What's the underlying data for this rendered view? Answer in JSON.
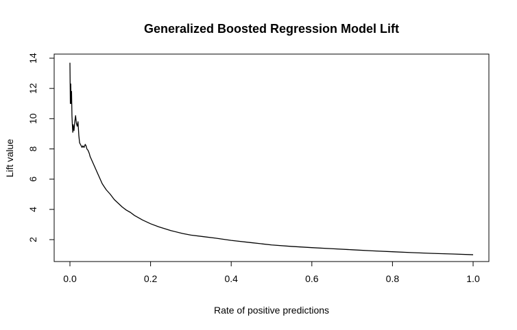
{
  "chart_data": {
    "type": "line",
    "title": "Generalized Boosted Regression Model Lift",
    "xlabel": "Rate of positive predictions",
    "ylabel": "Lift value",
    "xlim": [
      0.0,
      1.0
    ],
    "ylim": [
      1.0,
      14.0
    ],
    "x_ticks": [
      0.0,
      0.2,
      0.4,
      0.6,
      0.8,
      1.0
    ],
    "x_tick_labels": [
      "0.0",
      "0.2",
      "0.4",
      "0.6",
      "0.8",
      "1.0"
    ],
    "y_ticks": [
      2,
      4,
      6,
      8,
      10,
      12,
      14
    ],
    "y_tick_labels": [
      "2",
      "4",
      "6",
      "8",
      "10",
      "12",
      "14"
    ],
    "grid": false,
    "series": [
      {
        "color": "#000000",
        "x": [
          0.0,
          0.001,
          0.002,
          0.003,
          0.004,
          0.005,
          0.006,
          0.007,
          0.008,
          0.01,
          0.012,
          0.014,
          0.016,
          0.018,
          0.02,
          0.022,
          0.024,
          0.026,
          0.028,
          0.03,
          0.032,
          0.035,
          0.038,
          0.04,
          0.042,
          0.045,
          0.048,
          0.05,
          0.055,
          0.06,
          0.065,
          0.07,
          0.075,
          0.08,
          0.085,
          0.09,
          0.1,
          0.11,
          0.12,
          0.13,
          0.14,
          0.15,
          0.16,
          0.18,
          0.2,
          0.22,
          0.25,
          0.28,
          0.3,
          0.33,
          0.36,
          0.4,
          0.45,
          0.5,
          0.55,
          0.6,
          0.65,
          0.7,
          0.75,
          0.8,
          0.85,
          0.9,
          0.95,
          1.0
        ],
        "y": [
          13.7,
          11.0,
          12.3,
          11.0,
          11.8,
          10.2,
          9.6,
          9.1,
          9.6,
          9.2,
          9.8,
          10.2,
          9.7,
          9.5,
          9.8,
          8.9,
          8.4,
          8.3,
          8.2,
          8.1,
          8.2,
          8.1,
          8.3,
          8.2,
          8.0,
          7.9,
          7.7,
          7.5,
          7.2,
          6.9,
          6.6,
          6.3,
          6.0,
          5.7,
          5.5,
          5.3,
          5.0,
          4.65,
          4.4,
          4.15,
          3.95,
          3.8,
          3.6,
          3.3,
          3.05,
          2.85,
          2.6,
          2.4,
          2.3,
          2.2,
          2.1,
          1.95,
          1.8,
          1.65,
          1.55,
          1.47,
          1.4,
          1.33,
          1.26,
          1.2,
          1.14,
          1.09,
          1.05,
          1.0
        ]
      }
    ]
  }
}
